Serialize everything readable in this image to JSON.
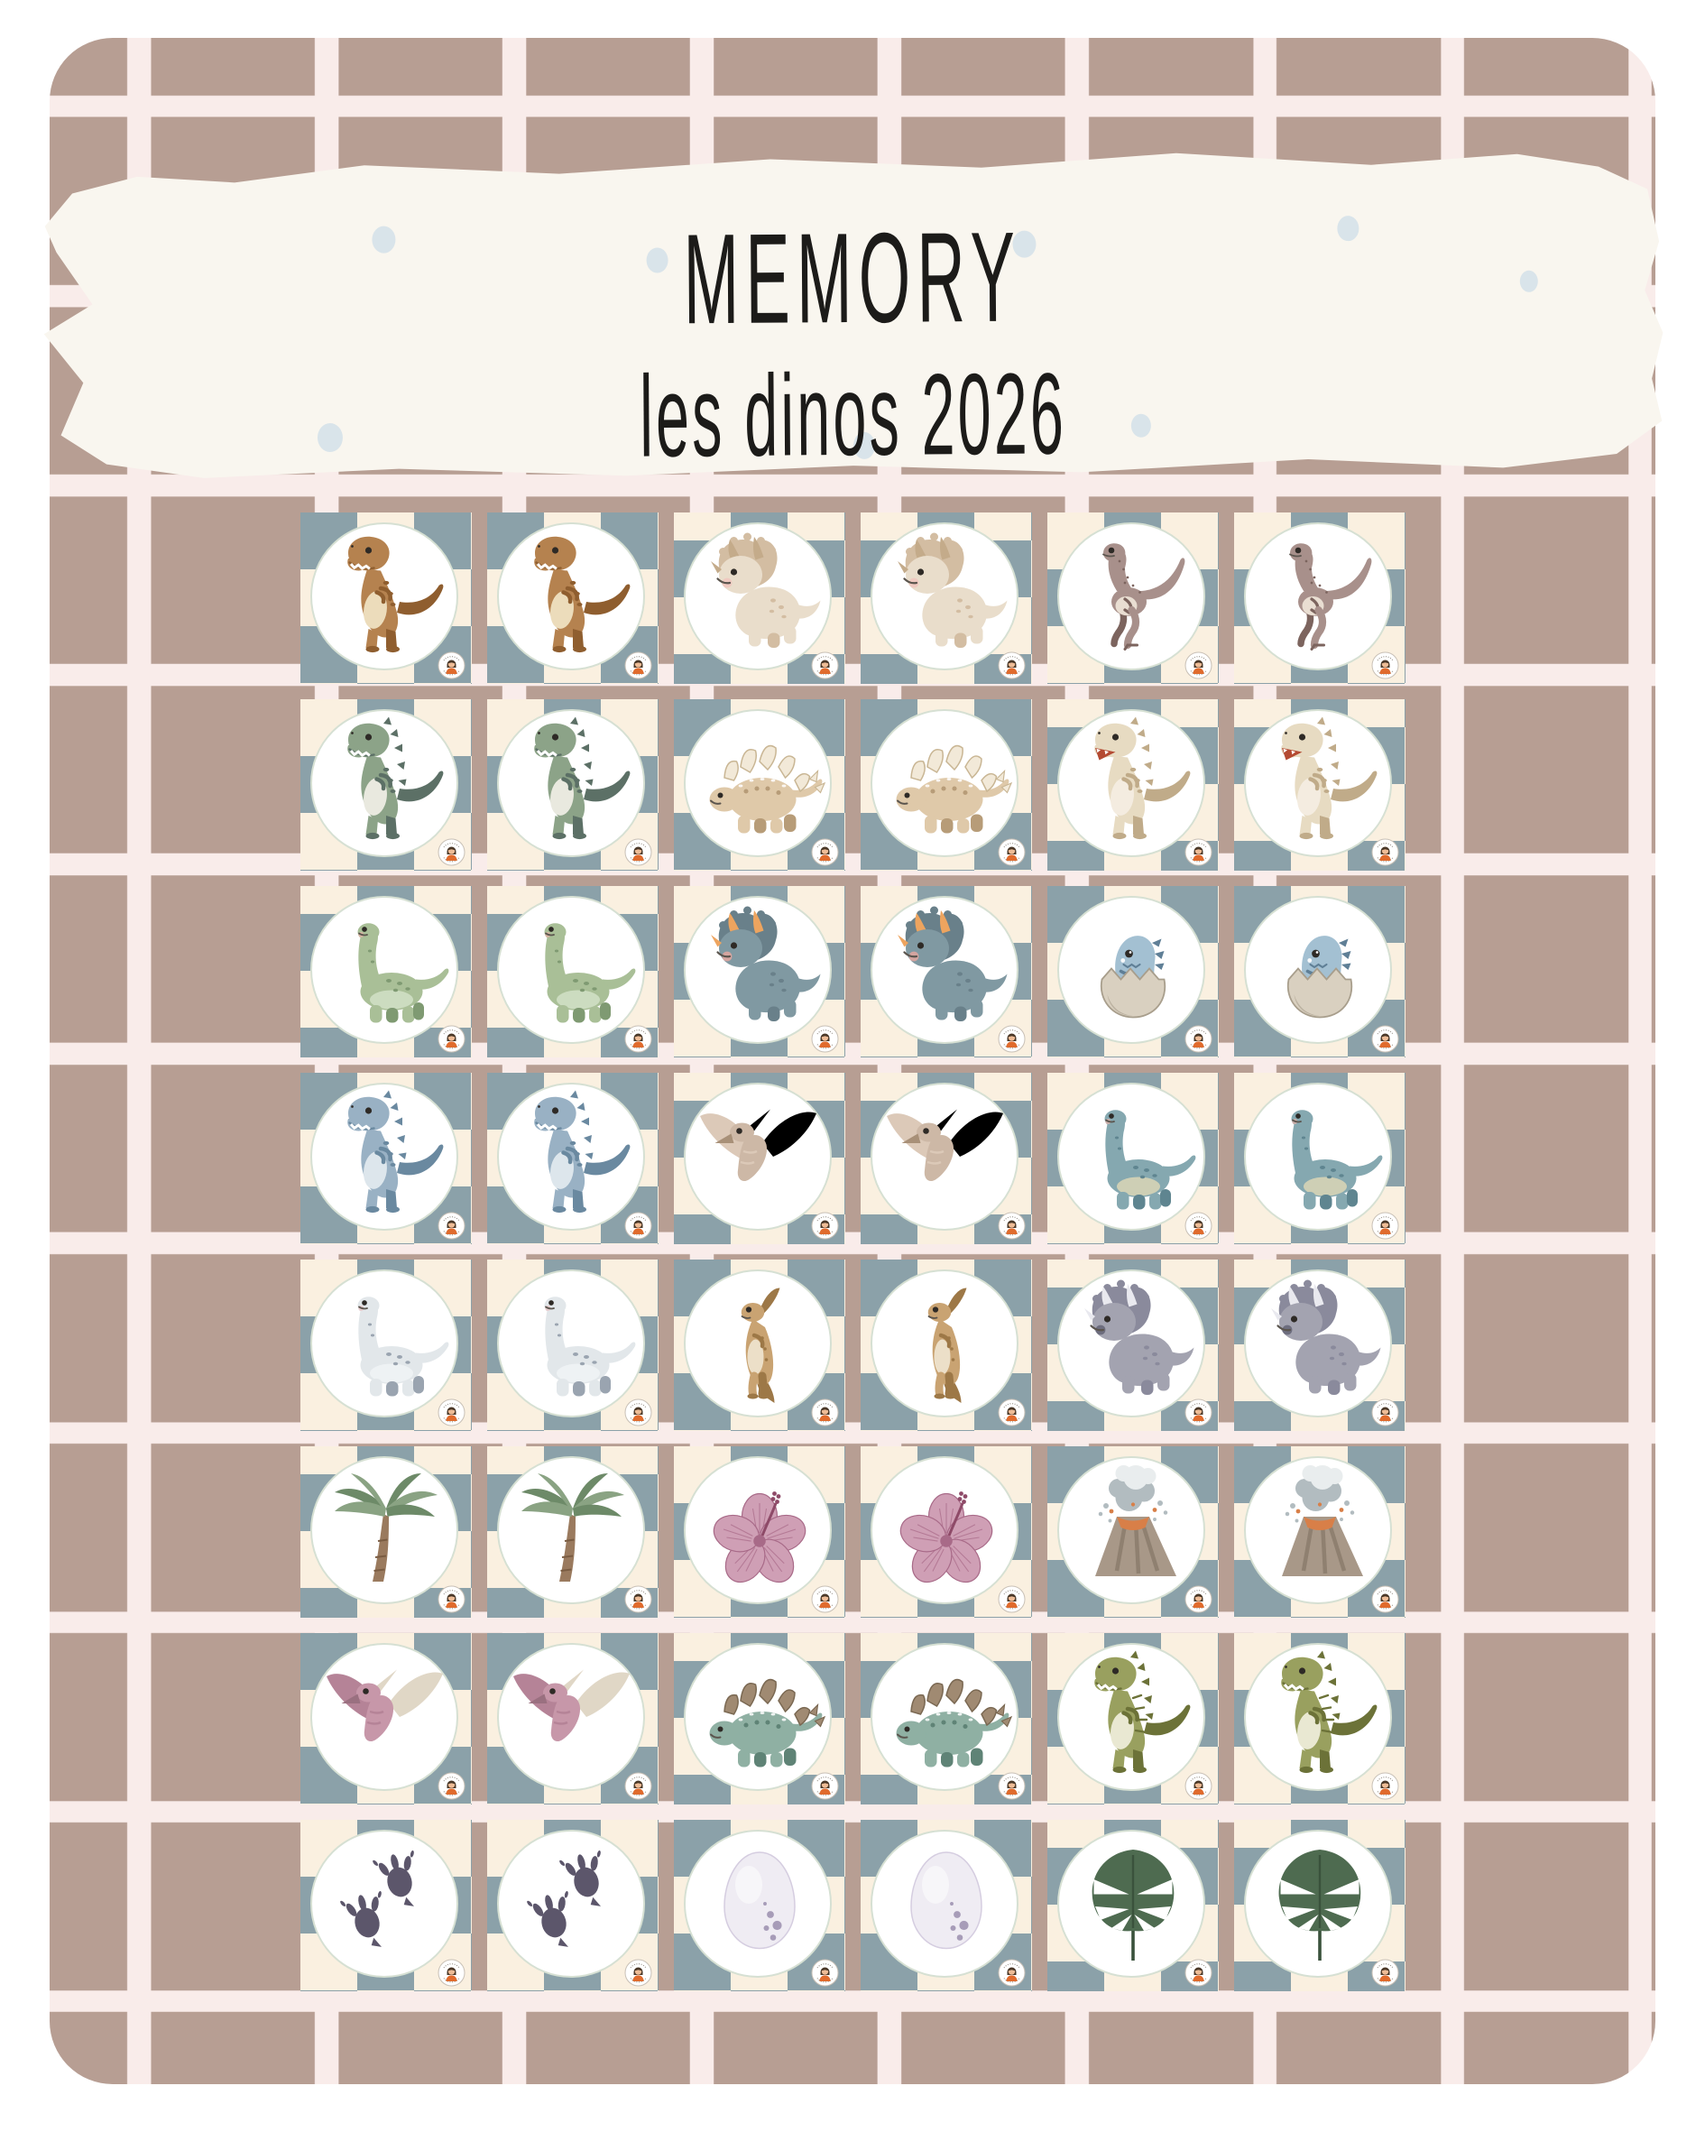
{
  "banner": {
    "title": "MEMORY",
    "subtitle": "les dinos 2026"
  },
  "colors": {
    "page_margin": "#ffffff",
    "sheet_mauve": "#b79e93",
    "plaid_line": "#f9ecea",
    "banner_cream": "#f9f6ef",
    "banner_dot_blue": "#d9e4ea",
    "title_ink": "#1c1b19",
    "card_cream": "#faf0e0",
    "card_slate": "#8ba1a9",
    "circle_white": "#ffffff",
    "circle_border": "#d6e0d3"
  },
  "board": {
    "rows": 8,
    "cols": 6,
    "grid": [
      [
        "trex-brown",
        "trex-brown",
        "triceratops-beige",
        "triceratops-beige",
        "velociraptor-brown",
        "velociraptor-brown"
      ],
      [
        "trex-green",
        "trex-green",
        "stegosaurus-beige",
        "stegosaurus-beige",
        "trex-cream",
        "trex-cream"
      ],
      [
        "brontosaurus-green",
        "brontosaurus-green",
        "triceratops-blue",
        "triceratops-blue",
        "baby-dino-egg",
        "baby-dino-egg"
      ],
      [
        "trex-blue",
        "trex-blue",
        "pterodactyl-tan",
        "pterodactyl-tan",
        "brontosaurus-blue",
        "brontosaurus-blue"
      ],
      [
        "diplodocus-pale",
        "diplodocus-pale",
        "parasaurolophus-tan",
        "parasaurolophus-tan",
        "triceratops-gray",
        "triceratops-gray"
      ],
      [
        "palm-tree",
        "palm-tree",
        "hibiscus-pink",
        "hibiscus-pink",
        "volcano",
        "volcano"
      ],
      [
        "pterodactyl-pink",
        "pterodactyl-pink",
        "stegosaurus-teal",
        "stegosaurus-teal",
        "trex-olive",
        "trex-olive"
      ],
      [
        "footprints",
        "footprints",
        "dino-egg",
        "dino-egg",
        "monstera-leaf",
        "monstera-leaf"
      ]
    ]
  },
  "stamp": {
    "label": "maker-logo"
  }
}
